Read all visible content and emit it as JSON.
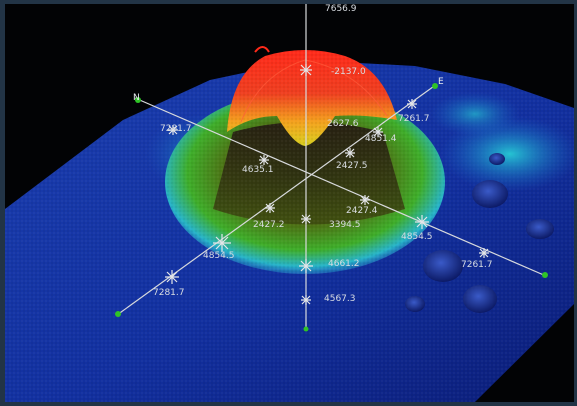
{
  "viewer": {
    "window": "3D point-cloud viewer",
    "background": "#020305",
    "frame_color": "#223446"
  },
  "axes": {
    "color": "#d7d9dc",
    "endpoint_color": "#2fc427",
    "direction_labels": {
      "north": "N",
      "east": "E"
    },
    "vertical_ticks": [
      "7656.9",
      "-2137.0",
      "3394.5",
      "4661.2",
      "4567.3"
    ],
    "ns_ticks": [
      "7281.7",
      "4851.4",
      "2427.2",
      "4854.5",
      "7281.7"
    ],
    "ew_ticks": [
      "7261.7",
      "4635.1",
      "2427.5",
      "2427.4",
      "4854.5",
      "7261.7"
    ],
    "center_tick": "2627.6"
  },
  "surface": {
    "colormap": [
      "#1c2fa8",
      "#1f7ad6",
      "#25c7d9",
      "#39c43a",
      "#d7d321",
      "#f08a1f",
      "#ee2b22"
    ],
    "description_icon": "elevation-point-cloud"
  }
}
